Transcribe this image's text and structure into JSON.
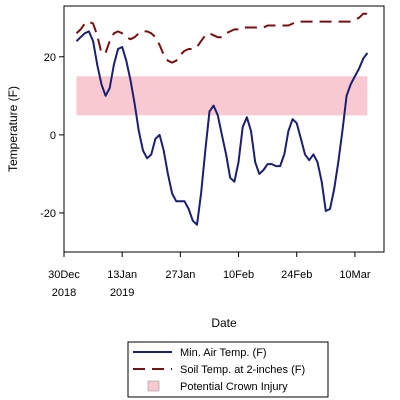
{
  "chart_data": {
    "type": "line",
    "xlabel": "Date",
    "ylabel": "Temperature (F)",
    "ylim": [
      -30,
      33
    ],
    "xlim": [
      "2018-12-30",
      "2019-03-17"
    ],
    "x_ticks": [
      {
        "date": "2018-12-30",
        "line1": "30Dec",
        "line2": "2018"
      },
      {
        "date": "2019-01-13",
        "line1": "13Jan",
        "line2": "2019"
      },
      {
        "date": "2019-01-27",
        "line1": "27Jan",
        "line2": ""
      },
      {
        "date": "2019-02-10",
        "line1": "10Feb",
        "line2": ""
      },
      {
        "date": "2019-02-24",
        "line1": "24Feb",
        "line2": ""
      },
      {
        "date": "2019-03-10",
        "line1": "10Mar",
        "line2": ""
      }
    ],
    "y_ticks": [
      20,
      0,
      -20
    ],
    "band": {
      "name": "Potential Crown Injury",
      "y_min": 5,
      "y_max": 15,
      "x_start": "2019-01-02",
      "x_end": "2019-03-13",
      "color": "#f9c9d2"
    },
    "series": [
      {
        "name": "Min. Air Temp. (F)",
        "color": "#1a1f6e",
        "dash": "solid",
        "points": [
          [
            "2019-01-02",
            24
          ],
          [
            "2019-01-03",
            25
          ],
          [
            "2019-01-04",
            26
          ],
          [
            "2019-01-05",
            26.5
          ],
          [
            "2019-01-06",
            24
          ],
          [
            "2019-01-07",
            18
          ],
          [
            "2019-01-08",
            13
          ],
          [
            "2019-01-09",
            10
          ],
          [
            "2019-01-10",
            12
          ],
          [
            "2019-01-11",
            18
          ],
          [
            "2019-01-12",
            22
          ],
          [
            "2019-01-13",
            22.5
          ],
          [
            "2019-01-14",
            19
          ],
          [
            "2019-01-15",
            14
          ],
          [
            "2019-01-16",
            8
          ],
          [
            "2019-01-17",
            1
          ],
          [
            "2019-01-18",
            -4
          ],
          [
            "2019-01-19",
            -6
          ],
          [
            "2019-01-20",
            -5
          ],
          [
            "2019-01-21",
            -1
          ],
          [
            "2019-01-22",
            0
          ],
          [
            "2019-01-23",
            -4
          ],
          [
            "2019-01-24",
            -10
          ],
          [
            "2019-01-25",
            -15
          ],
          [
            "2019-01-26",
            -17
          ],
          [
            "2019-01-27",
            -17
          ],
          [
            "2019-01-28",
            -17
          ],
          [
            "2019-01-29",
            -19
          ],
          [
            "2019-01-30",
            -22
          ],
          [
            "2019-01-31",
            -23
          ],
          [
            "2019-02-01",
            -15
          ],
          [
            "2019-02-02",
            -4
          ],
          [
            "2019-02-03",
            6
          ],
          [
            "2019-02-04",
            7.5
          ],
          [
            "2019-02-05",
            5
          ],
          [
            "2019-02-06",
            0
          ],
          [
            "2019-02-07",
            -5
          ],
          [
            "2019-02-08",
            -11
          ],
          [
            "2019-02-09",
            -12
          ],
          [
            "2019-02-10",
            -7
          ],
          [
            "2019-02-11",
            2
          ],
          [
            "2019-02-12",
            4.5
          ],
          [
            "2019-02-13",
            1
          ],
          [
            "2019-02-14",
            -7
          ],
          [
            "2019-02-15",
            -10
          ],
          [
            "2019-02-16",
            -9
          ],
          [
            "2019-02-17",
            -7.5
          ],
          [
            "2019-02-18",
            -7.5
          ],
          [
            "2019-02-19",
            -8
          ],
          [
            "2019-02-20",
            -8
          ],
          [
            "2019-02-21",
            -5
          ],
          [
            "2019-02-22",
            1
          ],
          [
            "2019-02-23",
            4
          ],
          [
            "2019-02-24",
            3
          ],
          [
            "2019-02-25",
            -1
          ],
          [
            "2019-02-26",
            -5
          ],
          [
            "2019-02-27",
            -6.5
          ],
          [
            "2019-02-28",
            -5
          ],
          [
            "2019-03-01",
            -7
          ],
          [
            "2019-03-02",
            -12
          ],
          [
            "2019-03-03",
            -19.5
          ],
          [
            "2019-03-04",
            -19
          ],
          [
            "2019-03-05",
            -14
          ],
          [
            "2019-03-06",
            -7
          ],
          [
            "2019-03-07",
            1
          ],
          [
            "2019-03-08",
            10
          ],
          [
            "2019-03-09",
            13
          ],
          [
            "2019-03-10",
            15
          ],
          [
            "2019-03-11",
            17
          ],
          [
            "2019-03-12",
            19.5
          ],
          [
            "2019-03-13",
            21
          ]
        ]
      },
      {
        "name": "Soil Temp. at 2-inches (F)",
        "color": "#7a0f12",
        "dash": "long-dash",
        "points": [
          [
            "2019-01-02",
            26
          ],
          [
            "2019-01-03",
            27
          ],
          [
            "2019-01-04",
            28.5
          ],
          [
            "2019-01-05",
            29
          ],
          [
            "2019-01-06",
            28.5
          ],
          [
            "2019-01-07",
            25.5
          ],
          [
            "2019-01-08",
            21
          ],
          [
            "2019-01-09",
            21
          ],
          [
            "2019-01-10",
            24
          ],
          [
            "2019-01-11",
            26
          ],
          [
            "2019-01-12",
            26.5
          ],
          [
            "2019-01-13",
            26
          ],
          [
            "2019-01-14",
            25
          ],
          [
            "2019-01-15",
            24.5
          ],
          [
            "2019-01-16",
            25
          ],
          [
            "2019-01-17",
            26
          ],
          [
            "2019-01-18",
            26.5
          ],
          [
            "2019-01-19",
            26.5
          ],
          [
            "2019-01-20",
            26
          ],
          [
            "2019-01-21",
            25
          ],
          [
            "2019-01-22",
            23
          ],
          [
            "2019-01-23",
            20.5
          ],
          [
            "2019-01-24",
            19
          ],
          [
            "2019-01-25",
            18.5
          ],
          [
            "2019-01-26",
            19
          ],
          [
            "2019-01-27",
            20.5
          ],
          [
            "2019-01-28",
            21.5
          ],
          [
            "2019-01-29",
            22
          ],
          [
            "2019-01-30",
            22
          ],
          [
            "2019-01-31",
            22.5
          ],
          [
            "2019-02-01",
            24
          ],
          [
            "2019-02-02",
            25.5
          ],
          [
            "2019-02-03",
            26
          ],
          [
            "2019-02-04",
            25.5
          ],
          [
            "2019-02-05",
            25
          ],
          [
            "2019-02-06",
            25
          ],
          [
            "2019-02-07",
            26
          ],
          [
            "2019-02-08",
            26.5
          ],
          [
            "2019-02-09",
            27
          ],
          [
            "2019-02-10",
            27
          ],
          [
            "2019-02-11",
            27.5
          ],
          [
            "2019-02-12",
            27.5
          ],
          [
            "2019-02-13",
            27.5
          ],
          [
            "2019-02-14",
            27.5
          ],
          [
            "2019-02-15",
            27.5
          ],
          [
            "2019-02-16",
            27.5
          ],
          [
            "2019-02-17",
            28
          ],
          [
            "2019-02-18",
            28
          ],
          [
            "2019-02-19",
            28
          ],
          [
            "2019-02-20",
            28
          ],
          [
            "2019-02-21",
            28
          ],
          [
            "2019-02-22",
            28
          ],
          [
            "2019-02-23",
            28.5
          ],
          [
            "2019-02-24",
            29
          ],
          [
            "2019-02-25",
            29
          ],
          [
            "2019-02-26",
            29
          ],
          [
            "2019-02-27",
            29
          ],
          [
            "2019-02-28",
            29
          ],
          [
            "2019-03-01",
            29
          ],
          [
            "2019-03-02",
            29
          ],
          [
            "2019-03-03",
            29
          ],
          [
            "2019-03-04",
            29
          ],
          [
            "2019-03-05",
            29
          ],
          [
            "2019-03-06",
            29
          ],
          [
            "2019-03-07",
            29
          ],
          [
            "2019-03-08",
            29
          ],
          [
            "2019-03-09",
            29
          ],
          [
            "2019-03-10",
            29.5
          ],
          [
            "2019-03-11",
            30
          ],
          [
            "2019-03-12",
            31
          ],
          [
            "2019-03-13",
            31
          ]
        ]
      }
    ],
    "grid": false,
    "legend": {
      "placement": "bottom",
      "entries": [
        {
          "label": "Min. Air Temp. (F)",
          "kind": "line",
          "color": "#1a1f6e",
          "dash": "solid"
        },
        {
          "label": "Soil Temp. at 2-inches (F)",
          "kind": "line",
          "color": "#7a0f12",
          "dash": "long-dash"
        },
        {
          "label": "Potential Crown Injury",
          "kind": "patch",
          "color": "#f9c9d2"
        }
      ]
    }
  }
}
